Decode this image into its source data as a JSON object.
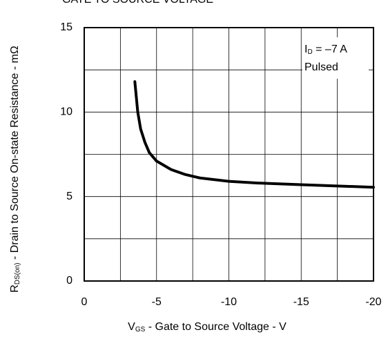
{
  "chart_data": {
    "type": "line",
    "title": "GATE TO SOURCE VOLTAGE",
    "xlabel": {
      "symbol": "V",
      "subscript": "GS",
      "text": " - Gate to Source Voltage - V"
    },
    "ylabel": {
      "symbol": "R",
      "subscript": "DS(on)",
      "text": " - Drain to Source On-state Resistance - mΩ"
    },
    "annotation": {
      "symbol": "I",
      "subscript": "D",
      "text": " = –7 A",
      "line2": "Pulsed"
    },
    "xlim": [
      0,
      -20
    ],
    "ylim": [
      0,
      15
    ],
    "xticks": [
      0,
      -5,
      -10,
      -15,
      -20
    ],
    "yticks": [
      0,
      5,
      10,
      15
    ],
    "xgrid": [
      -2.5,
      -5,
      -7.5,
      -10,
      -12.5,
      -15,
      -17.5
    ],
    "ygrid": [
      2.5,
      5,
      7.5,
      10,
      12.5
    ],
    "grid": true,
    "series": [
      {
        "color": "#000000",
        "x": [
          -3.5,
          -3.7,
          -3.9,
          -4.2,
          -4.5,
          -5,
          -6,
          -7,
          -8,
          -10,
          -12,
          -15,
          -20
        ],
        "values": [
          11.8,
          10.0,
          9.0,
          8.2,
          7.6,
          7.1,
          6.6,
          6.3,
          6.1,
          5.9,
          5.8,
          5.7,
          5.55
        ]
      }
    ]
  }
}
